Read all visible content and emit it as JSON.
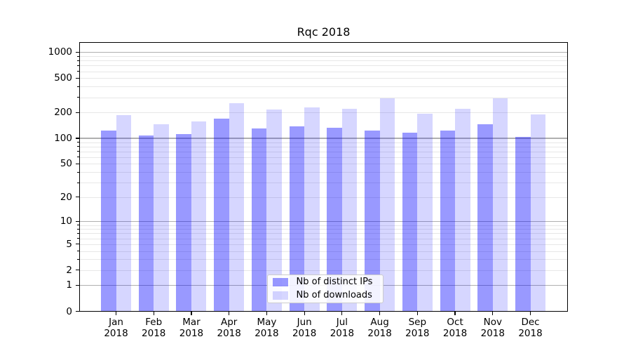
{
  "chart_data": {
    "type": "bar",
    "title": "Rqc 2018",
    "categories": [
      "Jan 2018",
      "Feb 2018",
      "Mar 2018",
      "Apr 2018",
      "May 2018",
      "Jun 2018",
      "Jul 2018",
      "Aug 2018",
      "Sep 2018",
      "Oct 2018",
      "Nov 2018",
      "Dec 2018"
    ],
    "series": [
      {
        "name": "Nb of distinct IPs",
        "color": "rgba(0,0,255,0.40)",
        "values": [
          124,
          108,
          113,
          171,
          131,
          137,
          133,
          124,
          117,
          123,
          146,
          103
        ]
      },
      {
        "name": "Nb of downloads",
        "color": "rgba(0,0,255,0.16)",
        "values": [
          187,
          146,
          158,
          255,
          217,
          228,
          219,
          295,
          195,
          221,
          295,
          190
        ]
      }
    ],
    "xlabel": "",
    "ylabel": "",
    "yscale": "log-like (position proportional to log10(1+value))",
    "ylim": [
      0,
      1320
    ],
    "y_ticks": [
      0,
      1,
      2,
      5,
      10,
      20,
      50,
      100,
      200,
      500,
      1000
    ],
    "grid": {
      "major": [
        1,
        10,
        100,
        1000
      ],
      "minor": [
        2,
        3,
        4,
        5,
        6,
        7,
        8,
        9,
        20,
        30,
        40,
        50,
        60,
        70,
        80,
        90,
        200,
        300,
        400,
        500,
        600,
        700,
        800,
        900
      ],
      "major_color": "#b0b0b0",
      "minor_color": "#e7e7e7"
    },
    "legend_position": "lower center",
    "axis_color": "#000000",
    "background": "#ffffff"
  }
}
